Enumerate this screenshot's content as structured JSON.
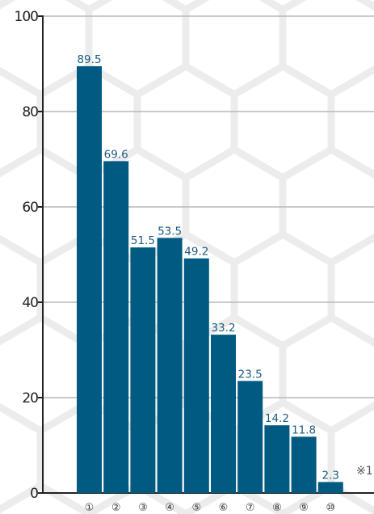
{
  "chart_data": {
    "type": "bar",
    "categories": [
      "①",
      "②",
      "③",
      "④",
      "⑤",
      "⑥",
      "⑦",
      "⑧",
      "⑨",
      "⑩"
    ],
    "values": [
      89.5,
      69.6,
      51.5,
      53.5,
      49.2,
      33.2,
      23.5,
      14.2,
      11.8,
      2.3
    ],
    "value_labels": [
      "89.5",
      "69.6",
      "51.5",
      "53.5",
      "49.2",
      "33.2",
      "23.5",
      "14.2",
      "11.8",
      "2.3"
    ],
    "ylim": [
      0,
      100
    ],
    "yticks": [
      0,
      20,
      40,
      60,
      80,
      100
    ],
    "title": "",
    "xlabel": "",
    "ylabel": "",
    "grid": true,
    "bar_color": "#005a82",
    "value_label_color": "#1d5b80",
    "note": "※1"
  }
}
